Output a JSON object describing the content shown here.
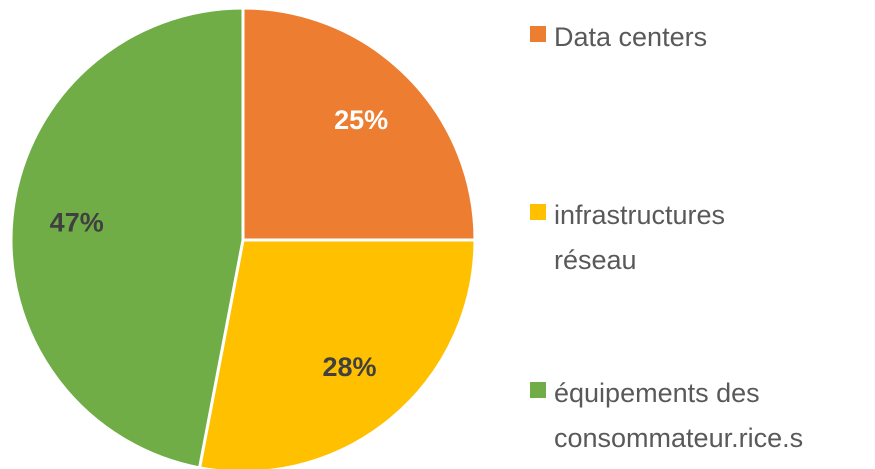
{
  "chart_data": {
    "type": "pie",
    "categories": [
      "Data centers",
      "infrastructures réseau",
      "équipements des consommateur.rice.s"
    ],
    "values": [
      25,
      28,
      47
    ],
    "value_labels": [
      "25%",
      "28%",
      "47%"
    ],
    "colors": [
      "#ED7D31",
      "#FFC000",
      "#70AD47"
    ],
    "label_colors": [
      "#FFFFFF",
      "#404040",
      "#404040"
    ],
    "legend": "right"
  }
}
